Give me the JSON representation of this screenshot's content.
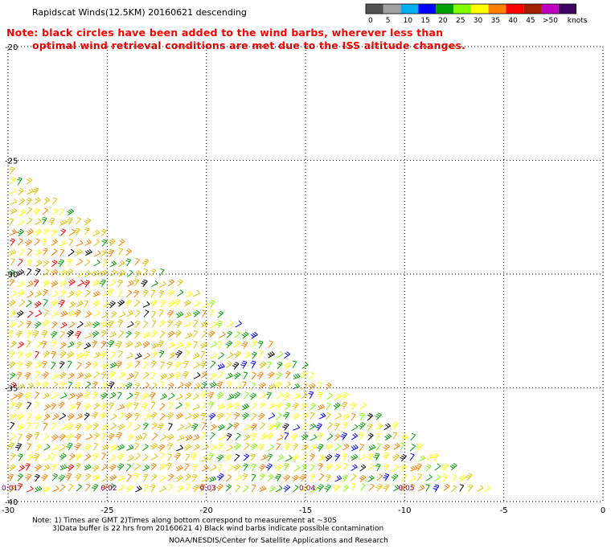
{
  "title": "Rapidscat Winds(12.5KM) 20160621 descending",
  "note": {
    "line1": "Note: black circles have been added to the wind barbs, wherever less than",
    "line2": "optimal wind retrieval conditions are met due to the ISS altitude changes."
  },
  "footer": {
    "line1": "Note: 1) Times are GMT 2)Times along bottom correspond to measurement at ~30S",
    "line2": "3)Data buffer is 22 hrs from 20160621 4) Black wind barbs indicate possible contamination",
    "credit": "NOAA/NESDIS/Center for Satellite Applications and Research"
  },
  "colors": {
    "note_text": "#ff0000",
    "time_label": "#800080",
    "grid": "#000000",
    "contamination_barb": "#000000"
  },
  "chart_data": {
    "type": "scatter",
    "plot": "wind barbs",
    "title": "Rapidscat Winds(12.5KM) 20160621 descending",
    "x_axis": {
      "range": [
        -30,
        0
      ],
      "ticks": [
        -30,
        -25,
        -20,
        -15,
        -10,
        -5,
        0
      ]
    },
    "y_axis": {
      "range": [
        -40,
        -20
      ],
      "ticks": [
        -20,
        -25,
        -30,
        -35,
        -40
      ]
    },
    "grid": "dotted",
    "legend": {
      "position": "top-right",
      "units": "knots",
      "bins": [
        {
          "label": "0",
          "color": "#505050"
        },
        {
          "label": "5",
          "color": "#a0a0a0"
        },
        {
          "label": "10",
          "color": "#00b0f0"
        },
        {
          "label": "15",
          "color": "#0000ff"
        },
        {
          "label": "20",
          "color": "#00a000"
        },
        {
          "label": "25",
          "color": "#80ff00"
        },
        {
          "label": "30",
          "color": "#ffff00"
        },
        {
          "label": "35",
          "color": "#ff8000"
        },
        {
          "label": "40",
          "color": "#ff0000"
        },
        {
          "label": "45",
          "color": "#a02000"
        },
        {
          "label": ">50",
          "color": "#c000c0"
        }
      ],
      "last_color": "#400060"
    },
    "times": [
      {
        "label": "0:01",
        "lon": -30
      },
      {
        "label": "0:02",
        "lon": -25
      },
      {
        "label": "0:03",
        "lon": -20
      },
      {
        "label": "0:04",
        "lon": -15
      },
      {
        "label": "0:05",
        "lon": -10
      }
    ],
    "swath": {
      "polygon": [
        [
          -30,
          -25.5
        ],
        [
          -30,
          -40.0
        ],
        [
          -5.1,
          -40.0
        ]
      ],
      "note": "wind barbs fill the descending swath"
    }
  }
}
